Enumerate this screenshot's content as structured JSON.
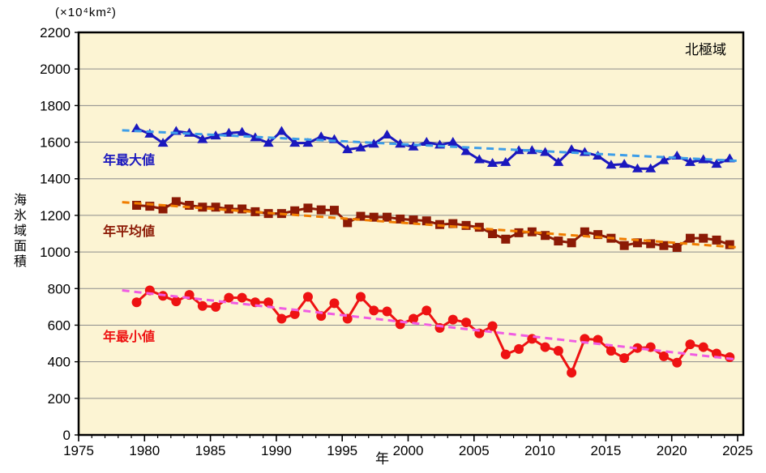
{
  "chart_data": {
    "type": "line",
    "unit_label": "(×10⁴km²)",
    "region_label": "北極域",
    "xlabel": "年",
    "ylabel": "海氷域面積",
    "xlim": [
      1975,
      2025
    ],
    "ylim": [
      0,
      2200
    ],
    "x_ticks": [
      1975,
      1980,
      1985,
      1990,
      1995,
      2000,
      2005,
      2010,
      2015,
      2020,
      2025
    ],
    "y_ticks": [
      0,
      200,
      400,
      600,
      800,
      1000,
      1200,
      1400,
      1600,
      1800,
      2000,
      2200
    ],
    "grid": "horizontal-gridlines-on",
    "legend_position": "labels-inline-left",
    "plot_bg_color": "#FCF4D3",
    "grid_color": "#8C8C8C",
    "frame_color": "#000000",
    "years": [
      1979,
      1980,
      1981,
      1982,
      1983,
      1984,
      1985,
      1986,
      1987,
      1988,
      1989,
      1990,
      1991,
      1992,
      1993,
      1994,
      1995,
      1996,
      1997,
      1998,
      1999,
      2000,
      2001,
      2002,
      2003,
      2004,
      2005,
      2006,
      2007,
      2008,
      2009,
      2010,
      2011,
      2012,
      2013,
      2014,
      2015,
      2016,
      2017,
      2018,
      2019,
      2020,
      2021,
      2022,
      2023,
      2024
    ],
    "series": [
      {
        "name": "年最大値",
        "marker": "triangle",
        "color": "#1B18BE",
        "trend_color": "#3E9EE8",
        "trend": {
          "x0": 1978.3,
          "v0": 1665,
          "x1": 2025,
          "v1": 1498
        },
        "values": [
          1675,
          1645,
          1595,
          1660,
          1650,
          1615,
          1635,
          1650,
          1655,
          1625,
          1595,
          1660,
          1595,
          1595,
          1630,
          1615,
          1560,
          1570,
          1590,
          1640,
          1590,
          1575,
          1600,
          1585,
          1600,
          1550,
          1505,
          1485,
          1490,
          1555,
          1555,
          1545,
          1490,
          1560,
          1545,
          1525,
          1475,
          1480,
          1455,
          1455,
          1500,
          1525,
          1490,
          1505,
          1480,
          1510
        ]
      },
      {
        "name": "年平均値",
        "marker": "square",
        "color": "#8C1A05",
        "trend_color": "#F07D00",
        "trend": {
          "x0": 1978.3,
          "v0": 1272,
          "x1": 2025,
          "v1": 1025
        },
        "values": [
          1255,
          1250,
          1235,
          1275,
          1255,
          1245,
          1245,
          1235,
          1235,
          1220,
          1210,
          1210,
          1225,
          1240,
          1230,
          1228,
          1160,
          1195,
          1190,
          1190,
          1180,
          1175,
          1170,
          1150,
          1155,
          1145,
          1135,
          1100,
          1070,
          1105,
          1110,
          1090,
          1060,
          1050,
          1110,
          1095,
          1075,
          1035,
          1050,
          1045,
          1035,
          1025,
          1075,
          1075,
          1065,
          1040
        ]
      },
      {
        "name": "年最小値",
        "marker": "circle",
        "color": "#EE1212",
        "trend_color": "#F05CE2",
        "trend": {
          "x0": 1978.3,
          "v0": 790,
          "x1": 2025,
          "v1": 412
        },
        "values": [
          725,
          790,
          760,
          730,
          765,
          705,
          700,
          750,
          750,
          725,
          725,
          635,
          660,
          755,
          650,
          720,
          635,
          755,
          680,
          675,
          605,
          635,
          680,
          585,
          630,
          615,
          555,
          595,
          440,
          470,
          525,
          480,
          460,
          340,
          525,
          520,
          460,
          420,
          475,
          480,
          430,
          395,
          495,
          480,
          445,
          425
        ]
      }
    ]
  }
}
